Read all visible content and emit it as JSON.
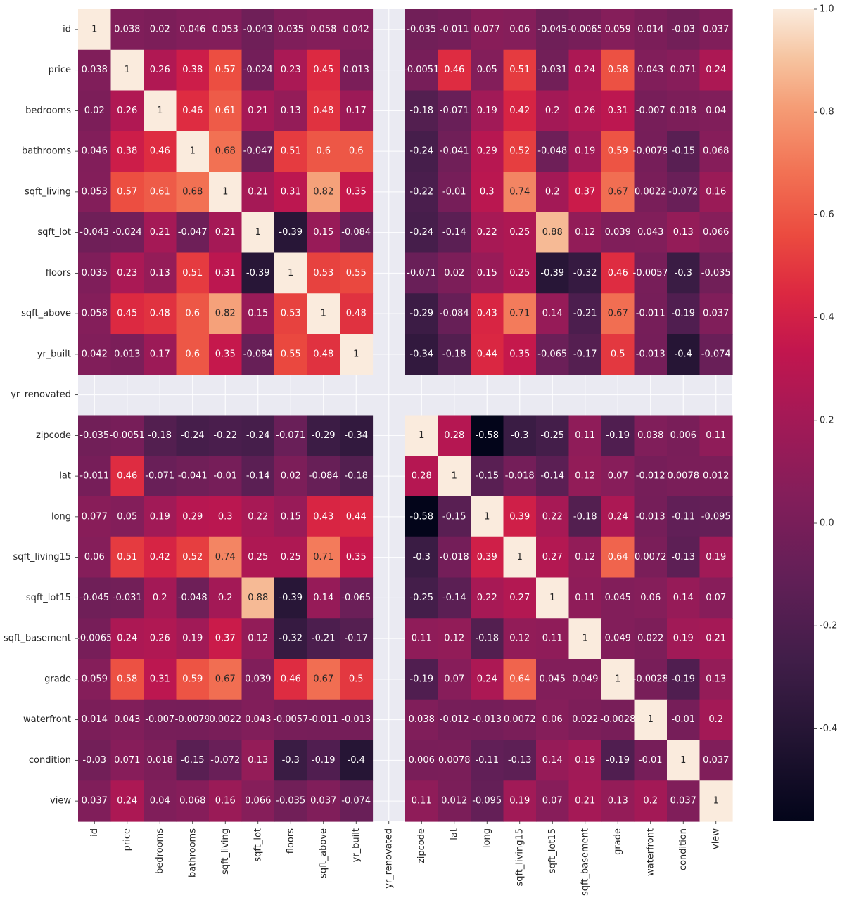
{
  "chart_data": {
    "type": "heatmap",
    "title": "",
    "xlabel": "",
    "ylabel": "",
    "labels": [
      "id",
      "price",
      "bedrooms",
      "bathrooms",
      "sqft_living",
      "sqft_lot",
      "floors",
      "sqft_above",
      "yr_built",
      "yr_renovated",
      "zipcode",
      "lat",
      "long",
      "sqft_living15",
      "sqft_lot15",
      "sqft_basement",
      "grade",
      "waterfront",
      "condition",
      "view"
    ],
    "matrix": [
      [
        "1",
        "0.038",
        "0.02",
        "0.046",
        "0.053",
        "-0.043",
        "0.035",
        "0.058",
        "0.042",
        null,
        "-0.035",
        "-0.011",
        "0.077",
        "0.06",
        "-0.045",
        "-0.0065",
        "0.059",
        "0.014",
        "-0.03",
        "0.037"
      ],
      [
        "0.038",
        "1",
        "0.26",
        "0.38",
        "0.57",
        "-0.024",
        "0.23",
        "0.45",
        "0.013",
        null,
        "-0.0051",
        "0.46",
        "0.05",
        "0.51",
        "-0.031",
        "0.24",
        "0.58",
        "0.043",
        "0.071",
        "0.24"
      ],
      [
        "0.02",
        "0.26",
        "1",
        "0.46",
        "0.61",
        "0.21",
        "0.13",
        "0.48",
        "0.17",
        null,
        "-0.18",
        "-0.071",
        "0.19",
        "0.42",
        "0.2",
        "0.26",
        "0.31",
        "-0.007",
        "0.018",
        "0.04"
      ],
      [
        "0.046",
        "0.38",
        "0.46",
        "1",
        "0.68",
        "-0.047",
        "0.51",
        "0.6",
        "0.6",
        null,
        "-0.24",
        "-0.041",
        "0.29",
        "0.52",
        "-0.048",
        "0.19",
        "0.59",
        "-0.0079",
        "-0.15",
        "0.068"
      ],
      [
        "0.053",
        "0.57",
        "0.61",
        "0.68",
        "1",
        "0.21",
        "0.31",
        "0.82",
        "0.35",
        null,
        "-0.22",
        "-0.01",
        "0.3",
        "0.74",
        "0.2",
        "0.37",
        "0.67",
        "0.0022",
        "-0.072",
        "0.16"
      ],
      [
        "-0.043",
        "-0.024",
        "0.21",
        "-0.047",
        "0.21",
        "1",
        "-0.39",
        "0.15",
        "-0.084",
        null,
        "-0.24",
        "-0.14",
        "0.22",
        "0.25",
        "0.88",
        "0.12",
        "0.039",
        "0.043",
        "0.13",
        "0.066"
      ],
      [
        "0.035",
        "0.23",
        "0.13",
        "0.51",
        "0.31",
        "-0.39",
        "1",
        "0.53",
        "0.55",
        null,
        "-0.071",
        "0.02",
        "0.15",
        "0.25",
        "-0.39",
        "-0.32",
        "0.46",
        "-0.0057",
        "-0.3",
        "-0.035"
      ],
      [
        "0.058",
        "0.45",
        "0.48",
        "0.6",
        "0.82",
        "0.15",
        "0.53",
        "1",
        "0.48",
        null,
        "-0.29",
        "-0.084",
        "0.43",
        "0.71",
        "0.14",
        "-0.21",
        "0.67",
        "-0.011",
        "-0.19",
        "0.037"
      ],
      [
        "0.042",
        "0.013",
        "0.17",
        "0.6",
        "0.35",
        "-0.084",
        "0.55",
        "0.48",
        "1",
        null,
        "-0.34",
        "-0.18",
        "0.44",
        "0.35",
        "-0.065",
        "-0.17",
        "0.5",
        "-0.013",
        "-0.4",
        "-0.074"
      ],
      [
        null,
        null,
        null,
        null,
        null,
        null,
        null,
        null,
        null,
        null,
        null,
        null,
        null,
        null,
        null,
        null,
        null,
        null,
        null,
        null
      ],
      [
        "-0.035",
        "-0.0051",
        "-0.18",
        "-0.24",
        "-0.22",
        "-0.24",
        "-0.071",
        "-0.29",
        "-0.34",
        null,
        "1",
        "0.28",
        "-0.58",
        "-0.3",
        "-0.25",
        "0.11",
        "-0.19",
        "0.038",
        "0.006",
        "0.11"
      ],
      [
        "-0.011",
        "0.46",
        "-0.071",
        "-0.041",
        "-0.01",
        "-0.14",
        "0.02",
        "-0.084",
        "-0.18",
        null,
        "0.28",
        "1",
        "-0.15",
        "-0.018",
        "-0.14",
        "0.12",
        "0.07",
        "-0.012",
        "0.0078",
        "0.012"
      ],
      [
        "0.077",
        "0.05",
        "0.19",
        "0.29",
        "0.3",
        "0.22",
        "0.15",
        "0.43",
        "0.44",
        null,
        "-0.58",
        "-0.15",
        "1",
        "0.39",
        "0.22",
        "-0.18",
        "0.24",
        "-0.013",
        "-0.11",
        "-0.095"
      ],
      [
        "0.06",
        "0.51",
        "0.42",
        "0.52",
        "0.74",
        "0.25",
        "0.25",
        "0.71",
        "0.35",
        null,
        "-0.3",
        "-0.018",
        "0.39",
        "1",
        "0.27",
        "0.12",
        "0.64",
        "0.0072",
        "-0.13",
        "0.19"
      ],
      [
        "-0.045",
        "-0.031",
        "0.2",
        "-0.048",
        "0.2",
        "0.88",
        "-0.39",
        "0.14",
        "-0.065",
        null,
        "-0.25",
        "-0.14",
        "0.22",
        "0.27",
        "1",
        "0.11",
        "0.045",
        "0.06",
        "0.14",
        "0.07"
      ],
      [
        "-0.0065",
        "0.24",
        "0.26",
        "0.19",
        "0.37",
        "0.12",
        "-0.32",
        "-0.21",
        "-0.17",
        null,
        "0.11",
        "0.12",
        "-0.18",
        "0.12",
        "0.11",
        "1",
        "0.049",
        "0.022",
        "0.19",
        "0.21"
      ],
      [
        "0.059",
        "0.58",
        "0.31",
        "0.59",
        "0.67",
        "0.039",
        "0.46",
        "0.67",
        "0.5",
        null,
        "-0.19",
        "0.07",
        "0.24",
        "0.64",
        "0.045",
        "0.049",
        "1",
        "-0.0028",
        "-0.19",
        "0.13"
      ],
      [
        "0.014",
        "0.043",
        "-0.007",
        "-0.0079",
        "0.0022",
        "0.043",
        "-0.0057",
        "-0.011",
        "-0.013",
        null,
        "0.038",
        "-0.012",
        "-0.013",
        "0.0072",
        "0.06",
        "0.022",
        "-0.0028",
        "1",
        "-0.01",
        "0.2"
      ],
      [
        "-0.03",
        "0.071",
        "0.018",
        "-0.15",
        "-0.072",
        "0.13",
        "-0.3",
        "-0.19",
        "-0.4",
        null,
        "0.006",
        "0.0078",
        "-0.11",
        "-0.13",
        "0.14",
        "0.19",
        "-0.19",
        "-0.01",
        "1",
        "0.037"
      ],
      [
        "0.037",
        "0.24",
        "0.04",
        "0.068",
        "0.16",
        "0.066",
        "-0.035",
        "0.037",
        "-0.074",
        null,
        "0.11",
        "0.012",
        "-0.095",
        "0.19",
        "0.07",
        "0.21",
        "0.13",
        "0.2",
        "0.037",
        "1"
      ]
    ],
    "vmin": -0.58,
    "vmax": 1.0,
    "colormap": "rocket",
    "colorbar_ticks": [
      "1.0",
      "0.8",
      "0.6",
      "0.4",
      "0.2",
      "0.0",
      "-0.2",
      "-0.4"
    ],
    "colorbar_tick_values": [
      1.0,
      0.8,
      0.6,
      0.4,
      0.2,
      0.0,
      -0.2,
      -0.4
    ],
    "colors": {
      "missing_background": "#eaeaf2",
      "grid": "#ffffff",
      "tick_text": "#262626"
    }
  }
}
